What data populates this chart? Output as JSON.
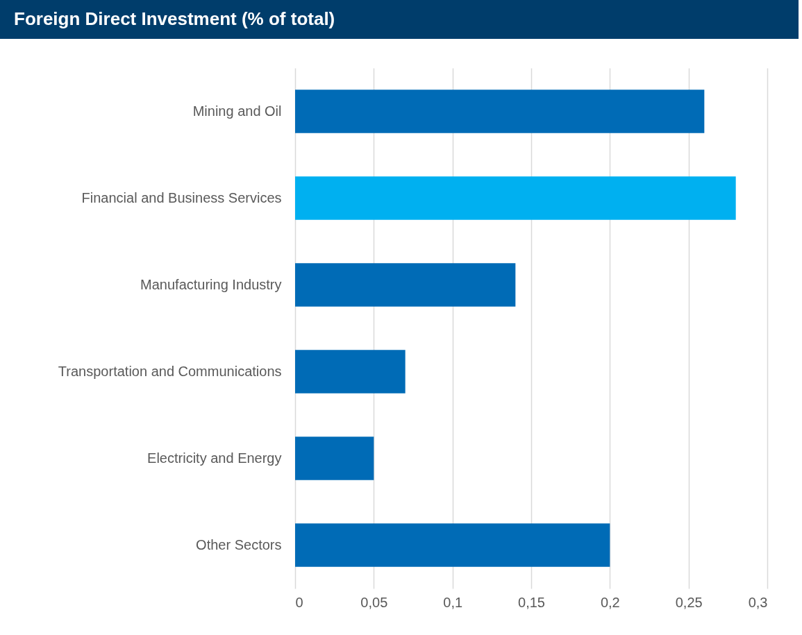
{
  "chart_data": {
    "type": "bar",
    "orientation": "horizontal",
    "title": "Foreign Direct Investment (% of total)",
    "categories": [
      "Mining and Oil",
      "Financial and Business Services",
      "Manufacturing Industry",
      "Transportation and Communications",
      "Electricity and Energy",
      "Other Sectors"
    ],
    "values": [
      0.26,
      0.28,
      0.14,
      0.07,
      0.05,
      0.2
    ],
    "colors": [
      "#006bb6",
      "#00b0f0",
      "#006bb6",
      "#006bb6",
      "#006bb6",
      "#006bb6"
    ],
    "xlim": [
      0,
      0.3
    ],
    "xticks": [
      0,
      {
        "value": 0.05,
        "label": "0,05"
      },
      {
        "value": 0.1,
        "label": "0,1"
      },
      {
        "value": 0.15,
        "label": "0,15"
      },
      {
        "value": 0.2,
        "label": "0,2"
      },
      {
        "value": 0.25,
        "label": "0,25"
      },
      {
        "value": 0.3,
        "label": "0,3"
      }
    ],
    "grid": "x"
  }
}
